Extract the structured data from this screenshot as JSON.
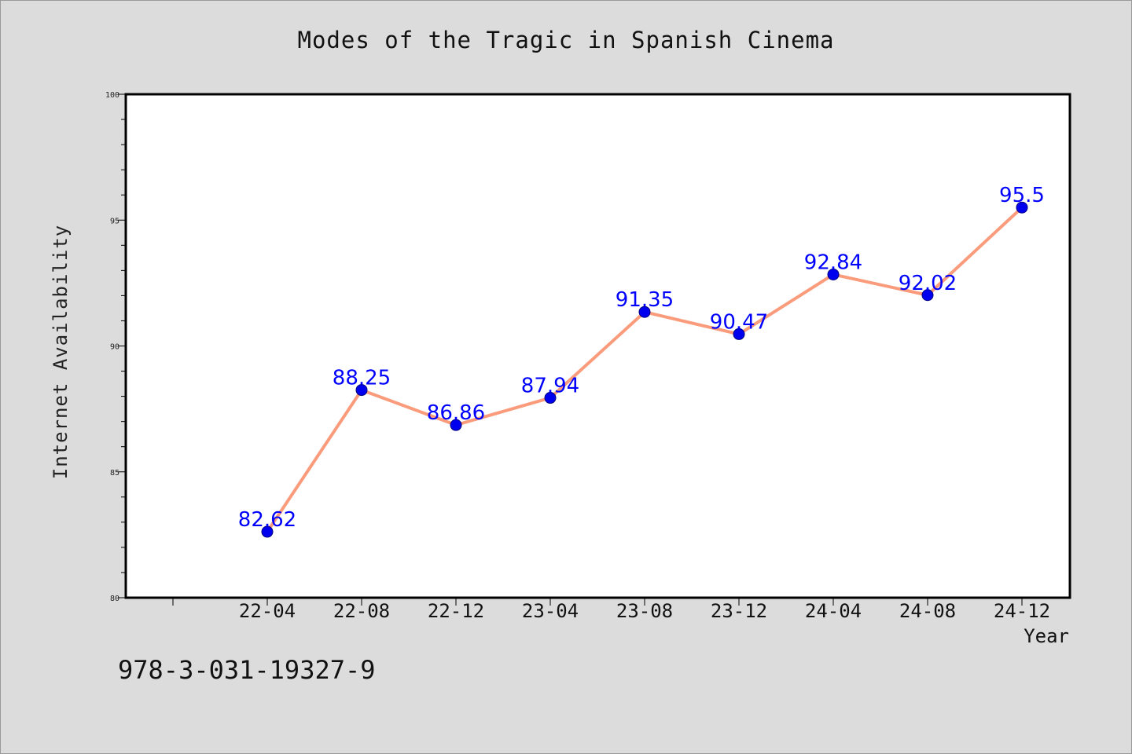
{
  "chart_data": {
    "type": "line",
    "title": "Modes of the Tragic in Spanish Cinema",
    "xlabel": "Year",
    "ylabel": "Internet Availability",
    "categories": [
      "22-04",
      "22-08",
      "22-12",
      "23-04",
      "23-08",
      "23-12",
      "24-04",
      "24-08",
      "24-12"
    ],
    "series": [
      {
        "values": [
          82.62,
          88.25,
          86.86,
          87.94,
          91.35,
          90.47,
          92.84,
          92.02,
          95.5
        ],
        "data_labels": [
          "82.62",
          "88.25",
          "86.86",
          "87.94",
          "91.35",
          "90.47",
          "92.84",
          "92.02",
          "95.5"
        ],
        "line_color": "#fa9c7c",
        "marker_color": "#0000ee",
        "label_color": "#0000ff"
      }
    ],
    "ylim": [
      80,
      100
    ],
    "yticks": [
      "80",
      "85",
      "90",
      "95",
      "100"
    ],
    "grid": false,
    "legend": "none"
  },
  "footer": {
    "isbn": "978-3-031-19327-9"
  }
}
